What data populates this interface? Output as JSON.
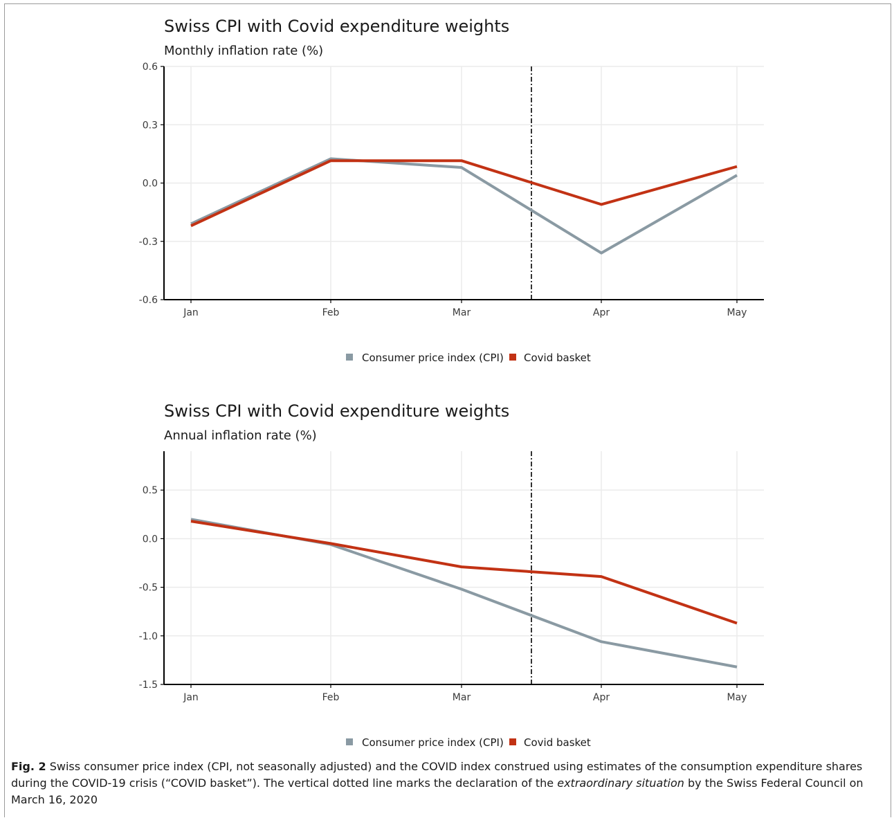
{
  "colors": {
    "cpi": "#8a9aa3",
    "covid": "#c23214",
    "grid": "#ebebeb",
    "axis": "#000000"
  },
  "chart_data": [
    {
      "type": "line",
      "title": "Swiss CPI with Covid expenditure weights",
      "subtitle": "Monthly inflation rate (%)",
      "categories": [
        "Jan",
        "Feb",
        "Mar",
        "Apr",
        "May"
      ],
      "ylim": [
        -0.6,
        0.6
      ],
      "yticks": [
        "0.6",
        "0.3",
        "0.0",
        "-0.3",
        "-0.6"
      ],
      "ytick_values": [
        0.6,
        0.3,
        0.0,
        -0.3,
        -0.6
      ],
      "vline_x": 2.5,
      "grid": true,
      "legend_position": "bottom",
      "series": [
        {
          "name": "Consumer price index (CPI)",
          "values": [
            -0.21,
            0.125,
            0.08,
            -0.36,
            0.04
          ]
        },
        {
          "name": "Covid basket",
          "values": [
            -0.22,
            0.115,
            0.115,
            -0.11,
            0.085
          ]
        }
      ]
    },
    {
      "type": "line",
      "title": "Swiss CPI with Covid expenditure weights",
      "subtitle": "Annual inflation rate (%)",
      "categories": [
        "Jan",
        "Feb",
        "Mar",
        "Apr",
        "May"
      ],
      "ylim": [
        -1.5,
        0.9
      ],
      "yticks": [
        "0.5",
        "0.0",
        "-0.5",
        "-1.0",
        "-1.5"
      ],
      "ytick_values": [
        0.5,
        0.0,
        -0.5,
        -1.0,
        -1.5
      ],
      "vline_x": 2.5,
      "grid": true,
      "legend_position": "bottom",
      "series": [
        {
          "name": "Consumer price index (CPI)",
          "values": [
            0.2,
            -0.06,
            -0.52,
            -1.06,
            -1.32
          ]
        },
        {
          "name": "Covid basket",
          "values": [
            0.18,
            -0.05,
            -0.29,
            -0.39,
            -0.87
          ]
        }
      ]
    }
  ],
  "caption": {
    "label": "Fig. 2",
    "text_before": " Swiss consumer price index (CPI, not seasonally adjusted) and the COVID index construed using estimates of the consumption expenditure shares during the COVID-19 crisis (“COVID basket”). The vertical dotted line marks the declaration of the ",
    "emphasis": "extraordinary situation",
    "text_after": " by the Swiss Federal Council on March 16, 2020"
  }
}
